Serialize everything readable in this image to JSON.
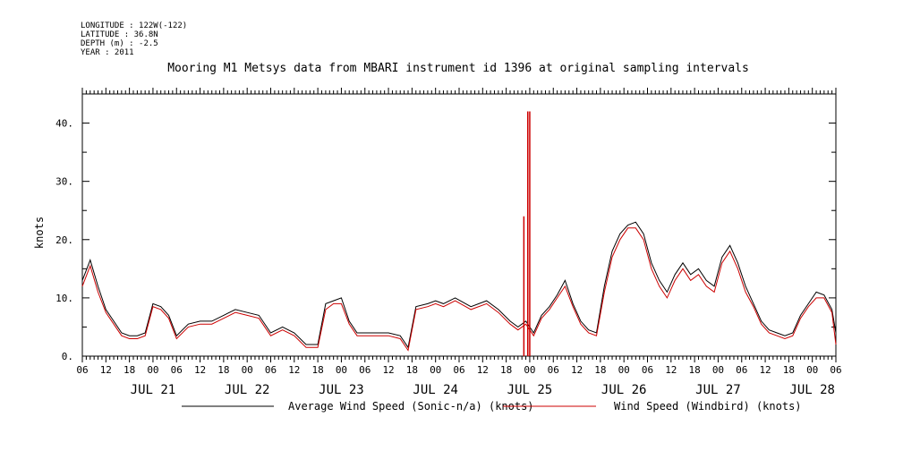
{
  "header": {
    "longitude": "LONGITUDE : 122W(-122)",
    "latitude": "LATITUDE : 36.8N",
    "depth": "DEPTH (m) : -2.5",
    "year": "YEAR : 2011"
  },
  "chart_data": {
    "type": "line",
    "title": "Mooring M1 Metsys data from MBARI instrument id 1396 at original sampling intervals",
    "ylabel": "knots",
    "xlabel": "",
    "ylim": [
      0,
      45
    ],
    "yticks": [
      0,
      10,
      20,
      30,
      40
    ],
    "ytick_labels": [
      "0.",
      "10.",
      "20.",
      "30.",
      "40."
    ],
    "xlim": [
      "2011-07-20T06:00",
      "2011-07-28T06:00"
    ],
    "x_unit": "hour of day (UTC), July 2011",
    "hour_tick_labels": [
      "06",
      "12",
      "18",
      "00",
      "06",
      "12",
      "18",
      "00",
      "06",
      "12",
      "18",
      "00",
      "06",
      "12",
      "18",
      "00",
      "06",
      "12",
      "18",
      "00",
      "06",
      "12",
      "18",
      "00",
      "06",
      "12",
      "18",
      "00",
      "06",
      "12",
      "18",
      "00",
      "06"
    ],
    "day_labels": [
      "JUL 21",
      "JUL 22",
      "JUL 23",
      "JUL 24",
      "JUL 25",
      "JUL 26",
      "JUL 27",
      "JUL 28"
    ],
    "grid": false,
    "legend_position": "bottom",
    "series": [
      {
        "name": "Average Wind Speed (Sonic-n/a) (knots)",
        "color": "#000000",
        "x": [
          "2011-07-20T06:00",
          "2011-07-20T08:00",
          "2011-07-20T10:00",
          "2011-07-20T12:00",
          "2011-07-20T14:00",
          "2011-07-20T16:00",
          "2011-07-20T18:00",
          "2011-07-20T20:00",
          "2011-07-20T22:00",
          "2011-07-21T00:00",
          "2011-07-21T02:00",
          "2011-07-21T04:00",
          "2011-07-21T06:00",
          "2011-07-21T09:00",
          "2011-07-21T12:00",
          "2011-07-21T15:00",
          "2011-07-21T18:00",
          "2011-07-21T21:00",
          "2011-07-22T00:00",
          "2011-07-22T03:00",
          "2011-07-22T06:00",
          "2011-07-22T09:00",
          "2011-07-22T12:00",
          "2011-07-22T15:00",
          "2011-07-22T18:00",
          "2011-07-22T20:00",
          "2011-07-22T22:00",
          "2011-07-23T00:00",
          "2011-07-23T02:00",
          "2011-07-23T04:00",
          "2011-07-23T06:00",
          "2011-07-23T09:00",
          "2011-07-23T12:00",
          "2011-07-23T15:00",
          "2011-07-23T17:00",
          "2011-07-23T19:00",
          "2011-07-23T22:00",
          "2011-07-24T00:00",
          "2011-07-24T02:00",
          "2011-07-24T05:00",
          "2011-07-24T09:00",
          "2011-07-24T13:00",
          "2011-07-24T16:00",
          "2011-07-24T19:00",
          "2011-07-24T21:00",
          "2011-07-24T23:00",
          "2011-07-25T01:00",
          "2011-07-25T03:00",
          "2011-07-25T05:00",
          "2011-07-25T07:00",
          "2011-07-25T09:00",
          "2011-07-25T11:00",
          "2011-07-25T13:00",
          "2011-07-25T15:00",
          "2011-07-25T17:00",
          "2011-07-25T19:00",
          "2011-07-25T21:00",
          "2011-07-25T23:00",
          "2011-07-26T01:00",
          "2011-07-26T03:00",
          "2011-07-26T05:00",
          "2011-07-26T07:00",
          "2011-07-26T09:00",
          "2011-07-26T11:00",
          "2011-07-26T13:00",
          "2011-07-26T15:00",
          "2011-07-26T17:00",
          "2011-07-26T19:00",
          "2011-07-26T21:00",
          "2011-07-26T23:00",
          "2011-07-27T01:00",
          "2011-07-27T03:00",
          "2011-07-27T05:00",
          "2011-07-27T07:00",
          "2011-07-27T09:00",
          "2011-07-27T11:00",
          "2011-07-27T13:00",
          "2011-07-27T15:00",
          "2011-07-27T17:00",
          "2011-07-27T19:00",
          "2011-07-27T21:00",
          "2011-07-27T23:00",
          "2011-07-28T01:00",
          "2011-07-28T03:00",
          "2011-07-28T05:00",
          "2011-07-28T06:00"
        ],
        "values": [
          13,
          16.5,
          12,
          8,
          6,
          4,
          3.5,
          3.5,
          4,
          9,
          8.5,
          7,
          3.5,
          5.5,
          6,
          6,
          7,
          8,
          7.5,
          7,
          4,
          5,
          4,
          2,
          2,
          9,
          9.5,
          10,
          6,
          4,
          4,
          4,
          4,
          3.5,
          1.5,
          8.5,
          9,
          9.5,
          9,
          10,
          8.5,
          9.5,
          8,
          6,
          5,
          6,
          4,
          7,
          8.5,
          10.5,
          13,
          9,
          6,
          4.5,
          4,
          12,
          18,
          21,
          22.5,
          23,
          21,
          16,
          13,
          11,
          14,
          16,
          14,
          15,
          13,
          12,
          17,
          19,
          16,
          12,
          9,
          6,
          4.5,
          4,
          3.5,
          4,
          7,
          9,
          11,
          10.5,
          8,
          4
        ]
      },
      {
        "name": "Wind Speed (Windbird) (knots)",
        "color": "#cc0000",
        "x": [
          "2011-07-20T06:00",
          "2011-07-20T08:00",
          "2011-07-20T10:00",
          "2011-07-20T12:00",
          "2011-07-20T14:00",
          "2011-07-20T16:00",
          "2011-07-20T18:00",
          "2011-07-20T20:00",
          "2011-07-20T22:00",
          "2011-07-21T00:00",
          "2011-07-21T02:00",
          "2011-07-21T04:00",
          "2011-07-21T06:00",
          "2011-07-21T09:00",
          "2011-07-21T12:00",
          "2011-07-21T15:00",
          "2011-07-21T18:00",
          "2011-07-21T21:00",
          "2011-07-22T00:00",
          "2011-07-22T03:00",
          "2011-07-22T06:00",
          "2011-07-22T09:00",
          "2011-07-22T12:00",
          "2011-07-22T15:00",
          "2011-07-22T18:00",
          "2011-07-22T20:00",
          "2011-07-22T22:00",
          "2011-07-23T00:00",
          "2011-07-23T02:00",
          "2011-07-23T04:00",
          "2011-07-23T06:00",
          "2011-07-23T09:00",
          "2011-07-23T12:00",
          "2011-07-23T15:00",
          "2011-07-23T17:00",
          "2011-07-23T19:00",
          "2011-07-23T22:00",
          "2011-07-24T00:00",
          "2011-07-24T02:00",
          "2011-07-24T05:00",
          "2011-07-24T09:00",
          "2011-07-24T13:00",
          "2011-07-24T16:00",
          "2011-07-24T19:00",
          "2011-07-24T21:00",
          "2011-07-24T23:00",
          "2011-07-25T01:00",
          "2011-07-25T03:00",
          "2011-07-25T05:00",
          "2011-07-25T07:00",
          "2011-07-25T09:00",
          "2011-07-25T11:00",
          "2011-07-25T13:00",
          "2011-07-25T15:00",
          "2011-07-25T17:00",
          "2011-07-25T19:00",
          "2011-07-25T21:00",
          "2011-07-25T23:00",
          "2011-07-26T01:00",
          "2011-07-26T03:00",
          "2011-07-26T05:00",
          "2011-07-26T07:00",
          "2011-07-26T09:00",
          "2011-07-26T11:00",
          "2011-07-26T13:00",
          "2011-07-26T15:00",
          "2011-07-26T17:00",
          "2011-07-26T19:00",
          "2011-07-26T21:00",
          "2011-07-26T23:00",
          "2011-07-27T01:00",
          "2011-07-27T03:00",
          "2011-07-27T05:00",
          "2011-07-27T07:00",
          "2011-07-27T09:00",
          "2011-07-27T11:00",
          "2011-07-27T13:00",
          "2011-07-27T15:00",
          "2011-07-27T17:00",
          "2011-07-27T19:00",
          "2011-07-27T21:00",
          "2011-07-27T23:00",
          "2011-07-28T01:00",
          "2011-07-28T03:00",
          "2011-07-28T05:00",
          "2011-07-28T06:00"
        ],
        "values": [
          12,
          15.5,
          11,
          7.5,
          5.5,
          3.5,
          3,
          3,
          3.5,
          8.5,
          8,
          6.5,
          3,
          5,
          5.5,
          5.5,
          6.5,
          7.5,
          7,
          6.5,
          3.5,
          4.5,
          3.5,
          1.5,
          1.5,
          8,
          9,
          9,
          5.5,
          3.5,
          3.5,
          3.5,
          3.5,
          3,
          1,
          8,
          8.5,
          9,
          8.5,
          9.5,
          8,
          9,
          7.5,
          5.5,
          4.5,
          5.5,
          3.5,
          6.5,
          8,
          10,
          12,
          8.5,
          5.5,
          4,
          3.5,
          11,
          17,
          20,
          22,
          22,
          20,
          15,
          12,
          10,
          13,
          15,
          13,
          14,
          12,
          11,
          16,
          18,
          15,
          11,
          8.5,
          5.5,
          4,
          3.5,
          3,
          3.5,
          6.5,
          8.5,
          10,
          10,
          7.5,
          2
        ],
        "spikes": [
          {
            "x": "2011-07-24T22:30",
            "y": 24
          },
          {
            "x": "2011-07-24T23:30",
            "y": 42
          },
          {
            "x": "2011-07-25T00:00",
            "y": 42
          }
        ]
      }
    ]
  }
}
